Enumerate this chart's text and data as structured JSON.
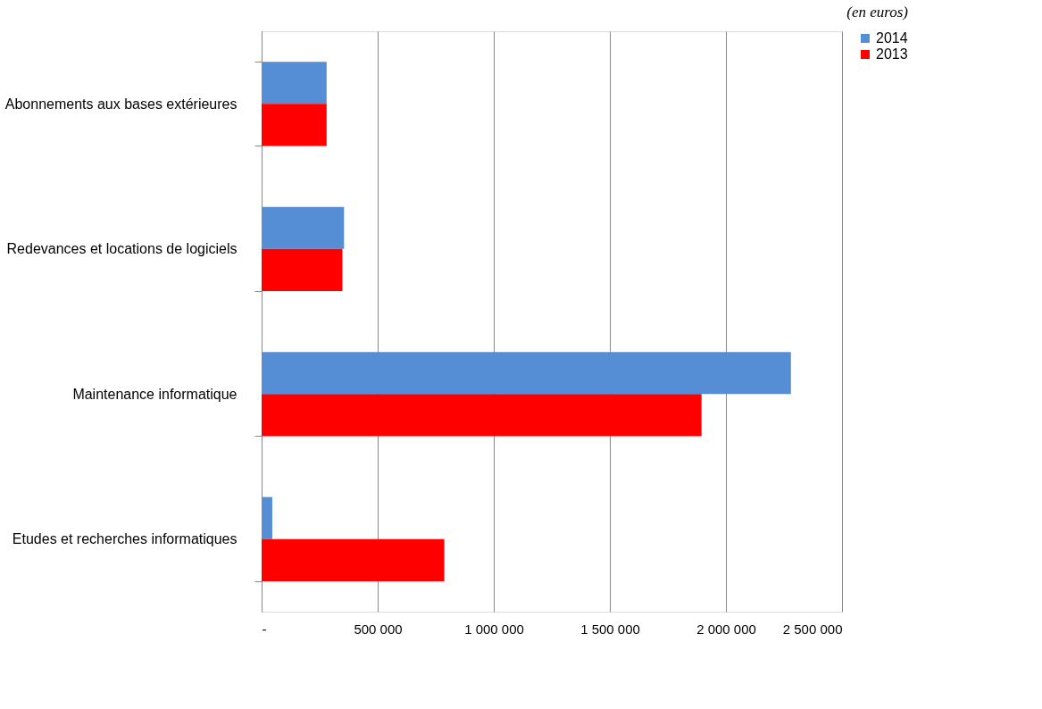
{
  "chart_data": {
    "type": "bar",
    "orientation": "horizontal",
    "categories": [
      "Abonnements aux bases extérieures",
      "Redevances et locations de logiciels",
      "Maintenance informatique",
      "Etudes et recherches informatiques"
    ],
    "series": [
      {
        "name": "2014",
        "color": "#558ed5",
        "values": [
          280000,
          355000,
          2280000,
          46000
        ]
      },
      {
        "name": "2013",
        "color": "#ff0000",
        "values": [
          280000,
          348000,
          1895000,
          787000
        ]
      }
    ],
    "xlim": [
      0,
      2500000
    ],
    "xticks": [
      {
        "value": 0,
        "label": "-"
      },
      {
        "value": 500000,
        "label": "500 000"
      },
      {
        "value": 1000000,
        "label": "1 000 000"
      },
      {
        "value": 1500000,
        "label": "1 500 000"
      },
      {
        "value": 2000000,
        "label": "2 000 000"
      },
      {
        "value": 2500000,
        "label": "2 500 000"
      }
    ],
    "grid": "x",
    "legend": "right",
    "annotations": [
      "(en euros)"
    ]
  }
}
